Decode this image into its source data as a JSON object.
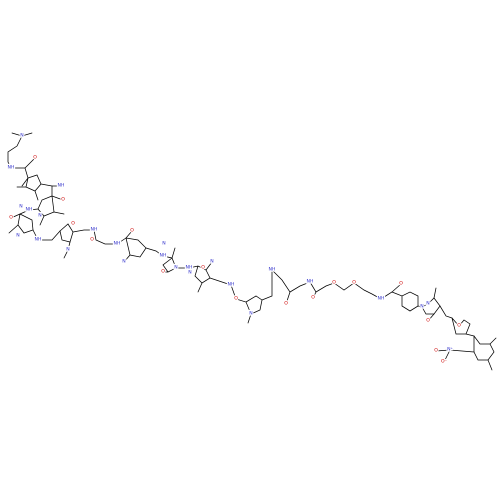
{
  "colors": {
    "bond": "#000000",
    "nitrogen": "#3333cc",
    "oxygen": "#cc0000",
    "carbon": "#000000",
    "background": "#ffffff"
  },
  "atom_labels": [
    {
      "id": "n-dimethylamine",
      "text": "N",
      "element": "N"
    },
    {
      "id": "n-amide-1",
      "text": "NH",
      "element": "N"
    },
    {
      "id": "o-amide-1",
      "text": "O",
      "element": "O"
    },
    {
      "id": "n-pyrrole-1",
      "text": "N",
      "element": "N"
    },
    {
      "id": "n-amide-2",
      "text": "NH",
      "element": "N"
    },
    {
      "id": "o-amide-2",
      "text": "O",
      "element": "O"
    },
    {
      "id": "n-pyrrole-2",
      "text": "N",
      "element": "N"
    },
    {
      "id": "n-amide-3",
      "text": "NH",
      "element": "N"
    },
    {
      "id": "o-amide-3",
      "text": "O",
      "element": "O"
    },
    {
      "id": "n-pyrrole-3",
      "text": "N",
      "element": "N"
    },
    {
      "id": "n-amide-4",
      "text": "NH",
      "element": "N"
    },
    {
      "id": "o-amide-4",
      "text": "O",
      "element": "O"
    },
    {
      "id": "n-pyrrole-4",
      "text": "N",
      "element": "N"
    },
    {
      "id": "n-amide-5",
      "text": "NH",
      "element": "N"
    },
    {
      "id": "o-amide-5",
      "text": "O",
      "element": "O"
    },
    {
      "id": "n-amide-6",
      "text": "NH",
      "element": "N"
    },
    {
      "id": "o-amide-6",
      "text": "O",
      "element": "O"
    },
    {
      "id": "n-pyrrole-5",
      "text": "N",
      "element": "N"
    },
    {
      "id": "n-amide-7",
      "text": "NH",
      "element": "N"
    },
    {
      "id": "n-imidazole-1",
      "text": "N",
      "element": "N"
    },
    {
      "id": "n-imidazole-1b",
      "text": "N",
      "element": "N"
    },
    {
      "id": "o-amide-7",
      "text": "O",
      "element": "O"
    },
    {
      "id": "n-amide-8",
      "text": "NH",
      "element": "N"
    },
    {
      "id": "n-imidazole-2",
      "text": "N",
      "element": "N"
    },
    {
      "id": "n-imidazole-2b",
      "text": "N",
      "element": "N"
    },
    {
      "id": "o-amide-8",
      "text": "O",
      "element": "O"
    },
    {
      "id": "n-amide-9",
      "text": "NH",
      "element": "N"
    },
    {
      "id": "o-amide-9",
      "text": "O",
      "element": "O"
    },
    {
      "id": "n-pyrrole-6",
      "text": "N",
      "element": "N"
    },
    {
      "id": "n-amide-10",
      "text": "NH",
      "element": "N"
    },
    {
      "id": "o-amide-10",
      "text": "O",
      "element": "O"
    },
    {
      "id": "n-amide-11",
      "text": "NH",
      "element": "N"
    },
    {
      "id": "o-amide-11",
      "text": "O",
      "element": "O"
    },
    {
      "id": "o-ether-1",
      "text": "O",
      "element": "O"
    },
    {
      "id": "o-ether-2",
      "text": "O",
      "element": "O"
    },
    {
      "id": "n-amide-12",
      "text": "NH",
      "element": "N"
    },
    {
      "id": "o-amide-12",
      "text": "O",
      "element": "O"
    },
    {
      "id": "n-pyrazolone-1",
      "text": "N",
      "element": "N"
    },
    {
      "id": "n-pyrazolone-2",
      "text": "N",
      "element": "N"
    },
    {
      "id": "o-pyrazolone",
      "text": "O",
      "element": "O"
    },
    {
      "id": "o-furan",
      "text": "O",
      "element": "O"
    },
    {
      "id": "n-nitro",
      "text": "N⁺",
      "element": "N"
    },
    {
      "id": "o-nitro-1",
      "text": "O",
      "element": "O"
    },
    {
      "id": "o-nitro-2",
      "text": "O⁻",
      "element": "O"
    }
  ]
}
